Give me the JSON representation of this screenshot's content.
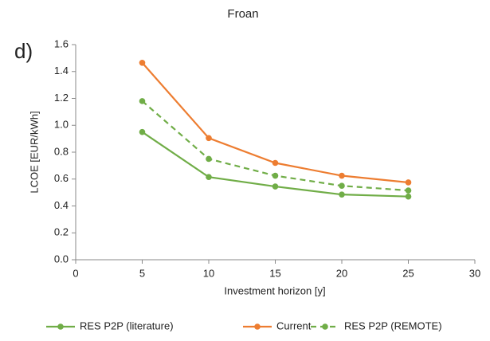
{
  "chart_data": {
    "type": "line",
    "title": "Froan",
    "panel_label": "d)",
    "x_label": "Investment horizon [y]",
    "y_label": "LCOE [EUR/kWh]",
    "x": [
      5,
      10,
      15,
      20,
      25
    ],
    "series": [
      {
        "name": "RES P2P (literature)",
        "color": "#70ad47",
        "line_style": "solid",
        "values": [
          0.95,
          0.615,
          0.545,
          0.485,
          0.47
        ]
      },
      {
        "name": "Current",
        "color": "#ed7d31",
        "line_style": "solid",
        "values": [
          1.465,
          0.905,
          0.72,
          0.625,
          0.575
        ]
      },
      {
        "name": "RES P2P (REMOTE)",
        "color": "#70ad47",
        "line_style": "dashed",
        "values": [
          1.18,
          0.75,
          0.625,
          0.55,
          0.515
        ]
      }
    ],
    "xlim": [
      0,
      30
    ],
    "xticks": [
      0,
      5,
      10,
      15,
      20,
      25,
      30
    ],
    "ylim": [
      0,
      1.6
    ],
    "yticks": [
      {
        "value": 0,
        "label": "0.0"
      },
      0.2,
      0.4,
      0.6,
      0.8,
      {
        "value": 1,
        "label": "1.0"
      },
      1.2,
      1.4,
      1.6
    ],
    "grid": false,
    "legend": "bottom"
  }
}
